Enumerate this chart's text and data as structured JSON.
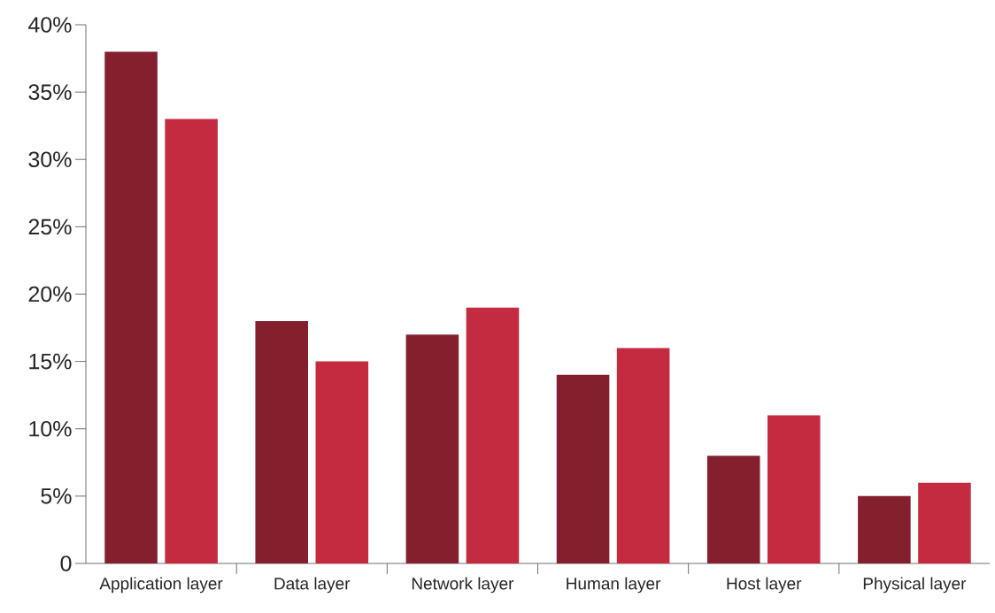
{
  "chart_data": {
    "type": "bar",
    "categories": [
      "Application layer",
      "Data layer",
      "Network layer",
      "Human layer",
      "Host layer",
      "Physical layer"
    ],
    "series": [
      {
        "color": "#84202e",
        "values": [
          38,
          18,
          17,
          14,
          8,
          5
        ]
      },
      {
        "color": "#c42b40",
        "values": [
          33,
          15,
          19,
          16,
          11,
          6
        ]
      }
    ],
    "ylim": [
      0,
      40
    ],
    "yticks": [
      0,
      {
        "value": 5,
        "label": "5%"
      },
      {
        "value": 10,
        "label": "10%"
      },
      {
        "value": 15,
        "label": "15%"
      },
      {
        "value": 20,
        "label": "20%"
      },
      {
        "value": 25,
        "label": "25%"
      },
      {
        "value": 30,
        "label": "30%"
      },
      {
        "value": 35,
        "label": "35%"
      },
      {
        "value": 40,
        "label": "40%"
      }
    ]
  }
}
